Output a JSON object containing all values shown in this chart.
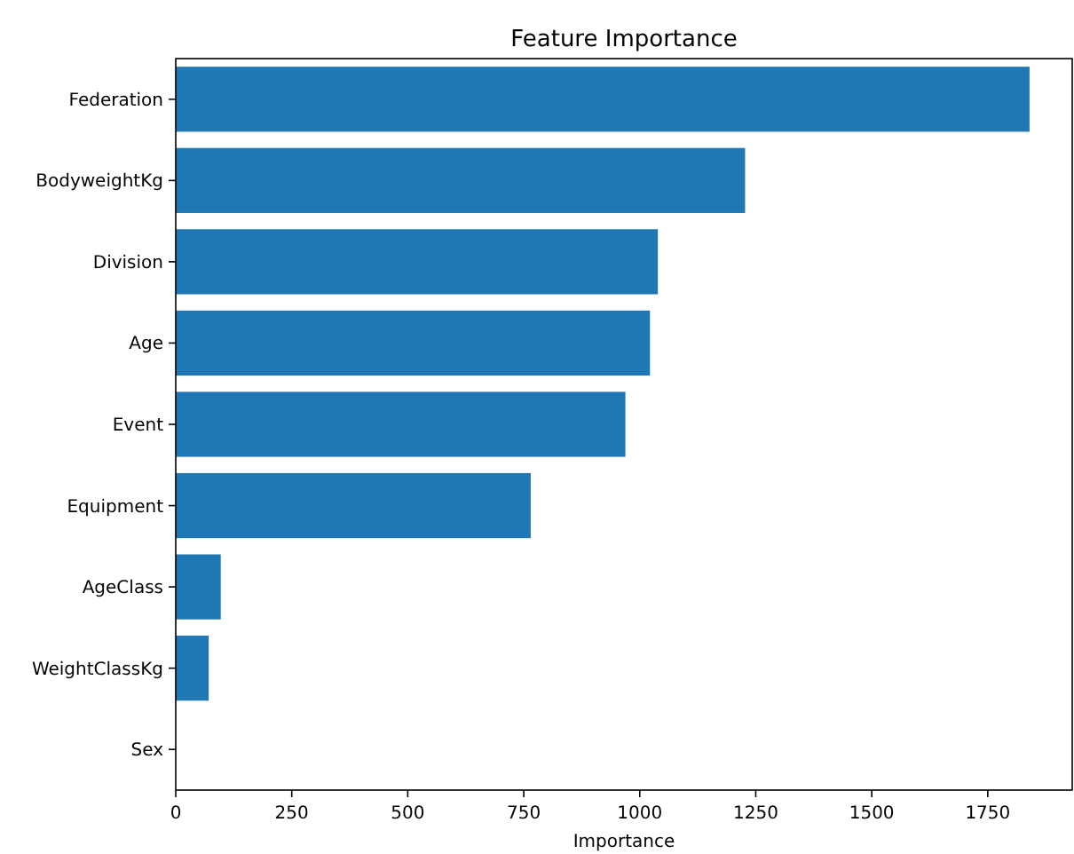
{
  "chart_data": {
    "type": "bar",
    "orientation": "horizontal",
    "title": "Feature Importance",
    "xlabel": "Importance",
    "categories": [
      "Federation",
      "BodyweightKg",
      "Division",
      "Age",
      "Event",
      "Equipment",
      "AgeClass",
      "WeightClassKg",
      "Sex"
    ],
    "values": [
      1840,
      1227,
      1039,
      1022,
      969,
      765,
      97,
      71,
      0
    ],
    "color": "#1f77b4",
    "xlim": [
      0,
      1932
    ],
    "xticks": [
      0,
      250,
      500,
      750,
      1000,
      1250,
      1500,
      1750
    ],
    "grid": false
  }
}
